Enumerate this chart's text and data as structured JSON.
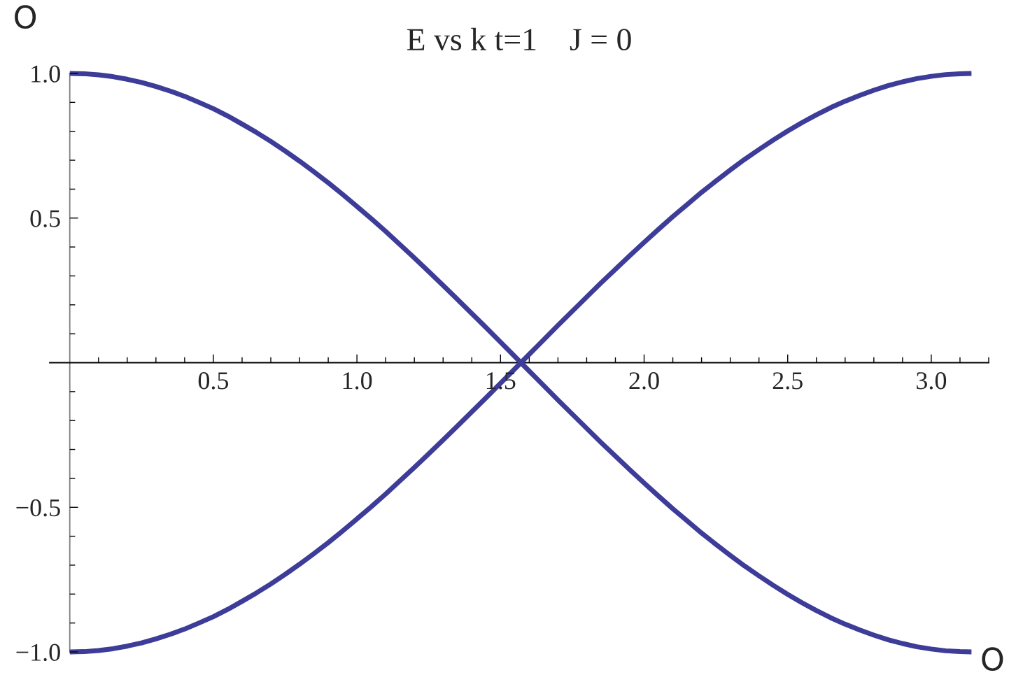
{
  "chart_data": {
    "type": "line",
    "title": "E vs k t=1    J = 0",
    "xlabel": "O",
    "ylabel": "O",
    "x": [
      0,
      0.05,
      0.1,
      0.15,
      0.2,
      0.25,
      0.3,
      0.35,
      0.4,
      0.45,
      0.5,
      0.55,
      0.6,
      0.65,
      0.7,
      0.75,
      0.8,
      0.85,
      0.9,
      0.95,
      1.0,
      1.05,
      1.1,
      1.15,
      1.2,
      1.25,
      1.3,
      1.35,
      1.4,
      1.45,
      1.5,
      1.55,
      1.571,
      1.6,
      1.65,
      1.7,
      1.75,
      1.8,
      1.85,
      1.9,
      1.95,
      2.0,
      2.05,
      2.1,
      2.15,
      2.2,
      2.25,
      2.3,
      2.35,
      2.4,
      2.45,
      2.5,
      2.55,
      2.6,
      2.65,
      2.7,
      2.75,
      2.8,
      2.85,
      2.9,
      2.95,
      3.0,
      3.05,
      3.1,
      3.14
    ],
    "series": [
      {
        "color": "#3d3d99",
        "values": [
          1.0,
          0.999,
          0.995,
          0.989,
          0.98,
          0.969,
          0.955,
          0.939,
          0.921,
          0.9,
          0.878,
          0.853,
          0.825,
          0.796,
          0.765,
          0.732,
          0.697,
          0.66,
          0.622,
          0.582,
          0.54,
          0.498,
          0.454,
          0.408,
          0.362,
          0.315,
          0.267,
          0.219,
          0.17,
          0.121,
          0.071,
          0.021,
          0.0,
          -0.029,
          -0.079,
          -0.129,
          -0.178,
          -0.227,
          -0.276,
          -0.323,
          -0.37,
          -0.416,
          -0.461,
          -0.505,
          -0.547,
          -0.589,
          -0.628,
          -0.666,
          -0.703,
          -0.737,
          -0.77,
          -0.801,
          -0.83,
          -0.857,
          -0.882,
          -0.904,
          -0.924,
          -0.942,
          -0.958,
          -0.971,
          -0.982,
          -0.99,
          -0.996,
          -0.999,
          -1.0
        ]
      },
      {
        "color": "#3d3d99",
        "values": [
          -1.0,
          -0.999,
          -0.995,
          -0.989,
          -0.98,
          -0.969,
          -0.955,
          -0.939,
          -0.921,
          -0.9,
          -0.878,
          -0.853,
          -0.825,
          -0.796,
          -0.765,
          -0.732,
          -0.697,
          -0.66,
          -0.622,
          -0.582,
          -0.54,
          -0.498,
          -0.454,
          -0.408,
          -0.362,
          -0.315,
          -0.267,
          -0.219,
          -0.17,
          -0.121,
          -0.071,
          -0.021,
          0.0,
          0.029,
          0.079,
          0.129,
          0.178,
          0.227,
          0.276,
          0.323,
          0.37,
          0.416,
          0.461,
          0.505,
          0.547,
          0.589,
          0.628,
          0.666,
          0.703,
          0.737,
          0.77,
          0.801,
          0.83,
          0.857,
          0.882,
          0.904,
          0.924,
          0.942,
          0.958,
          0.971,
          0.982,
          0.99,
          0.996,
          0.999,
          1.0
        ]
      }
    ],
    "xlim": [
      -0.07,
      3.2
    ],
    "ylim": [
      -1,
      1
    ],
    "xticks": [
      0.5,
      {
        "value": 1,
        "label": "1.0"
      },
      1.5,
      {
        "value": 2,
        "label": "2.0"
      },
      2.5,
      {
        "value": 3,
        "label": "3.0"
      },
      {
        "value": 0.1,
        "label": null
      },
      {
        "value": 0.2,
        "label": null
      },
      {
        "value": 0.3,
        "label": null
      },
      {
        "value": 0.4,
        "label": null
      },
      {
        "value": 0.6,
        "label": null
      },
      {
        "value": 0.7,
        "label": null
      },
      {
        "value": 0.8,
        "label": null
      },
      {
        "value": 0.9,
        "label": null
      },
      {
        "value": 1.1,
        "label": null
      },
      {
        "value": 1.2,
        "label": null
      },
      {
        "value": 1.3,
        "label": null
      },
      {
        "value": 1.4,
        "label": null
      },
      {
        "value": 1.6,
        "label": null
      },
      {
        "value": 1.7,
        "label": null
      },
      {
        "value": 1.8,
        "label": null
      },
      {
        "value": 1.9,
        "label": null
      },
      {
        "value": 2.1,
        "label": null
      },
      {
        "value": 2.2,
        "label": null
      },
      {
        "value": 2.3,
        "label": null
      },
      {
        "value": 2.4,
        "label": null
      },
      {
        "value": 2.6,
        "label": null
      },
      {
        "value": 2.7,
        "label": null
      },
      {
        "value": 2.8,
        "label": null
      },
      {
        "value": 2.9,
        "label": null
      },
      {
        "value": 3.1,
        "label": null
      },
      {
        "value": 3.2,
        "label": null
      }
    ],
    "yticks": [
      {
        "value": 1,
        "label": "1.0"
      },
      0.5,
      {
        "value": -0.5,
        "label": "−0.5"
      },
      {
        "value": -1,
        "label": "−1.0"
      },
      {
        "value": 0.9,
        "label": null
      },
      {
        "value": 0.8,
        "label": null
      },
      {
        "value": 0.7,
        "label": null
      },
      {
        "value": 0.6,
        "label": null
      },
      {
        "value": 0.4,
        "label": null
      },
      {
        "value": 0.3,
        "label": null
      },
      {
        "value": 0.2,
        "label": null
      },
      {
        "value": 0.1,
        "label": null
      },
      {
        "value": -0.1,
        "label": null
      },
      {
        "value": -0.2,
        "label": null
      },
      {
        "value": -0.3,
        "label": null
      },
      {
        "value": -0.4,
        "label": null
      },
      {
        "value": -0.6,
        "label": null
      },
      {
        "value": -0.7,
        "label": null
      },
      {
        "value": -0.8,
        "label": null
      },
      {
        "value": -0.9,
        "label": null
      }
    ]
  }
}
